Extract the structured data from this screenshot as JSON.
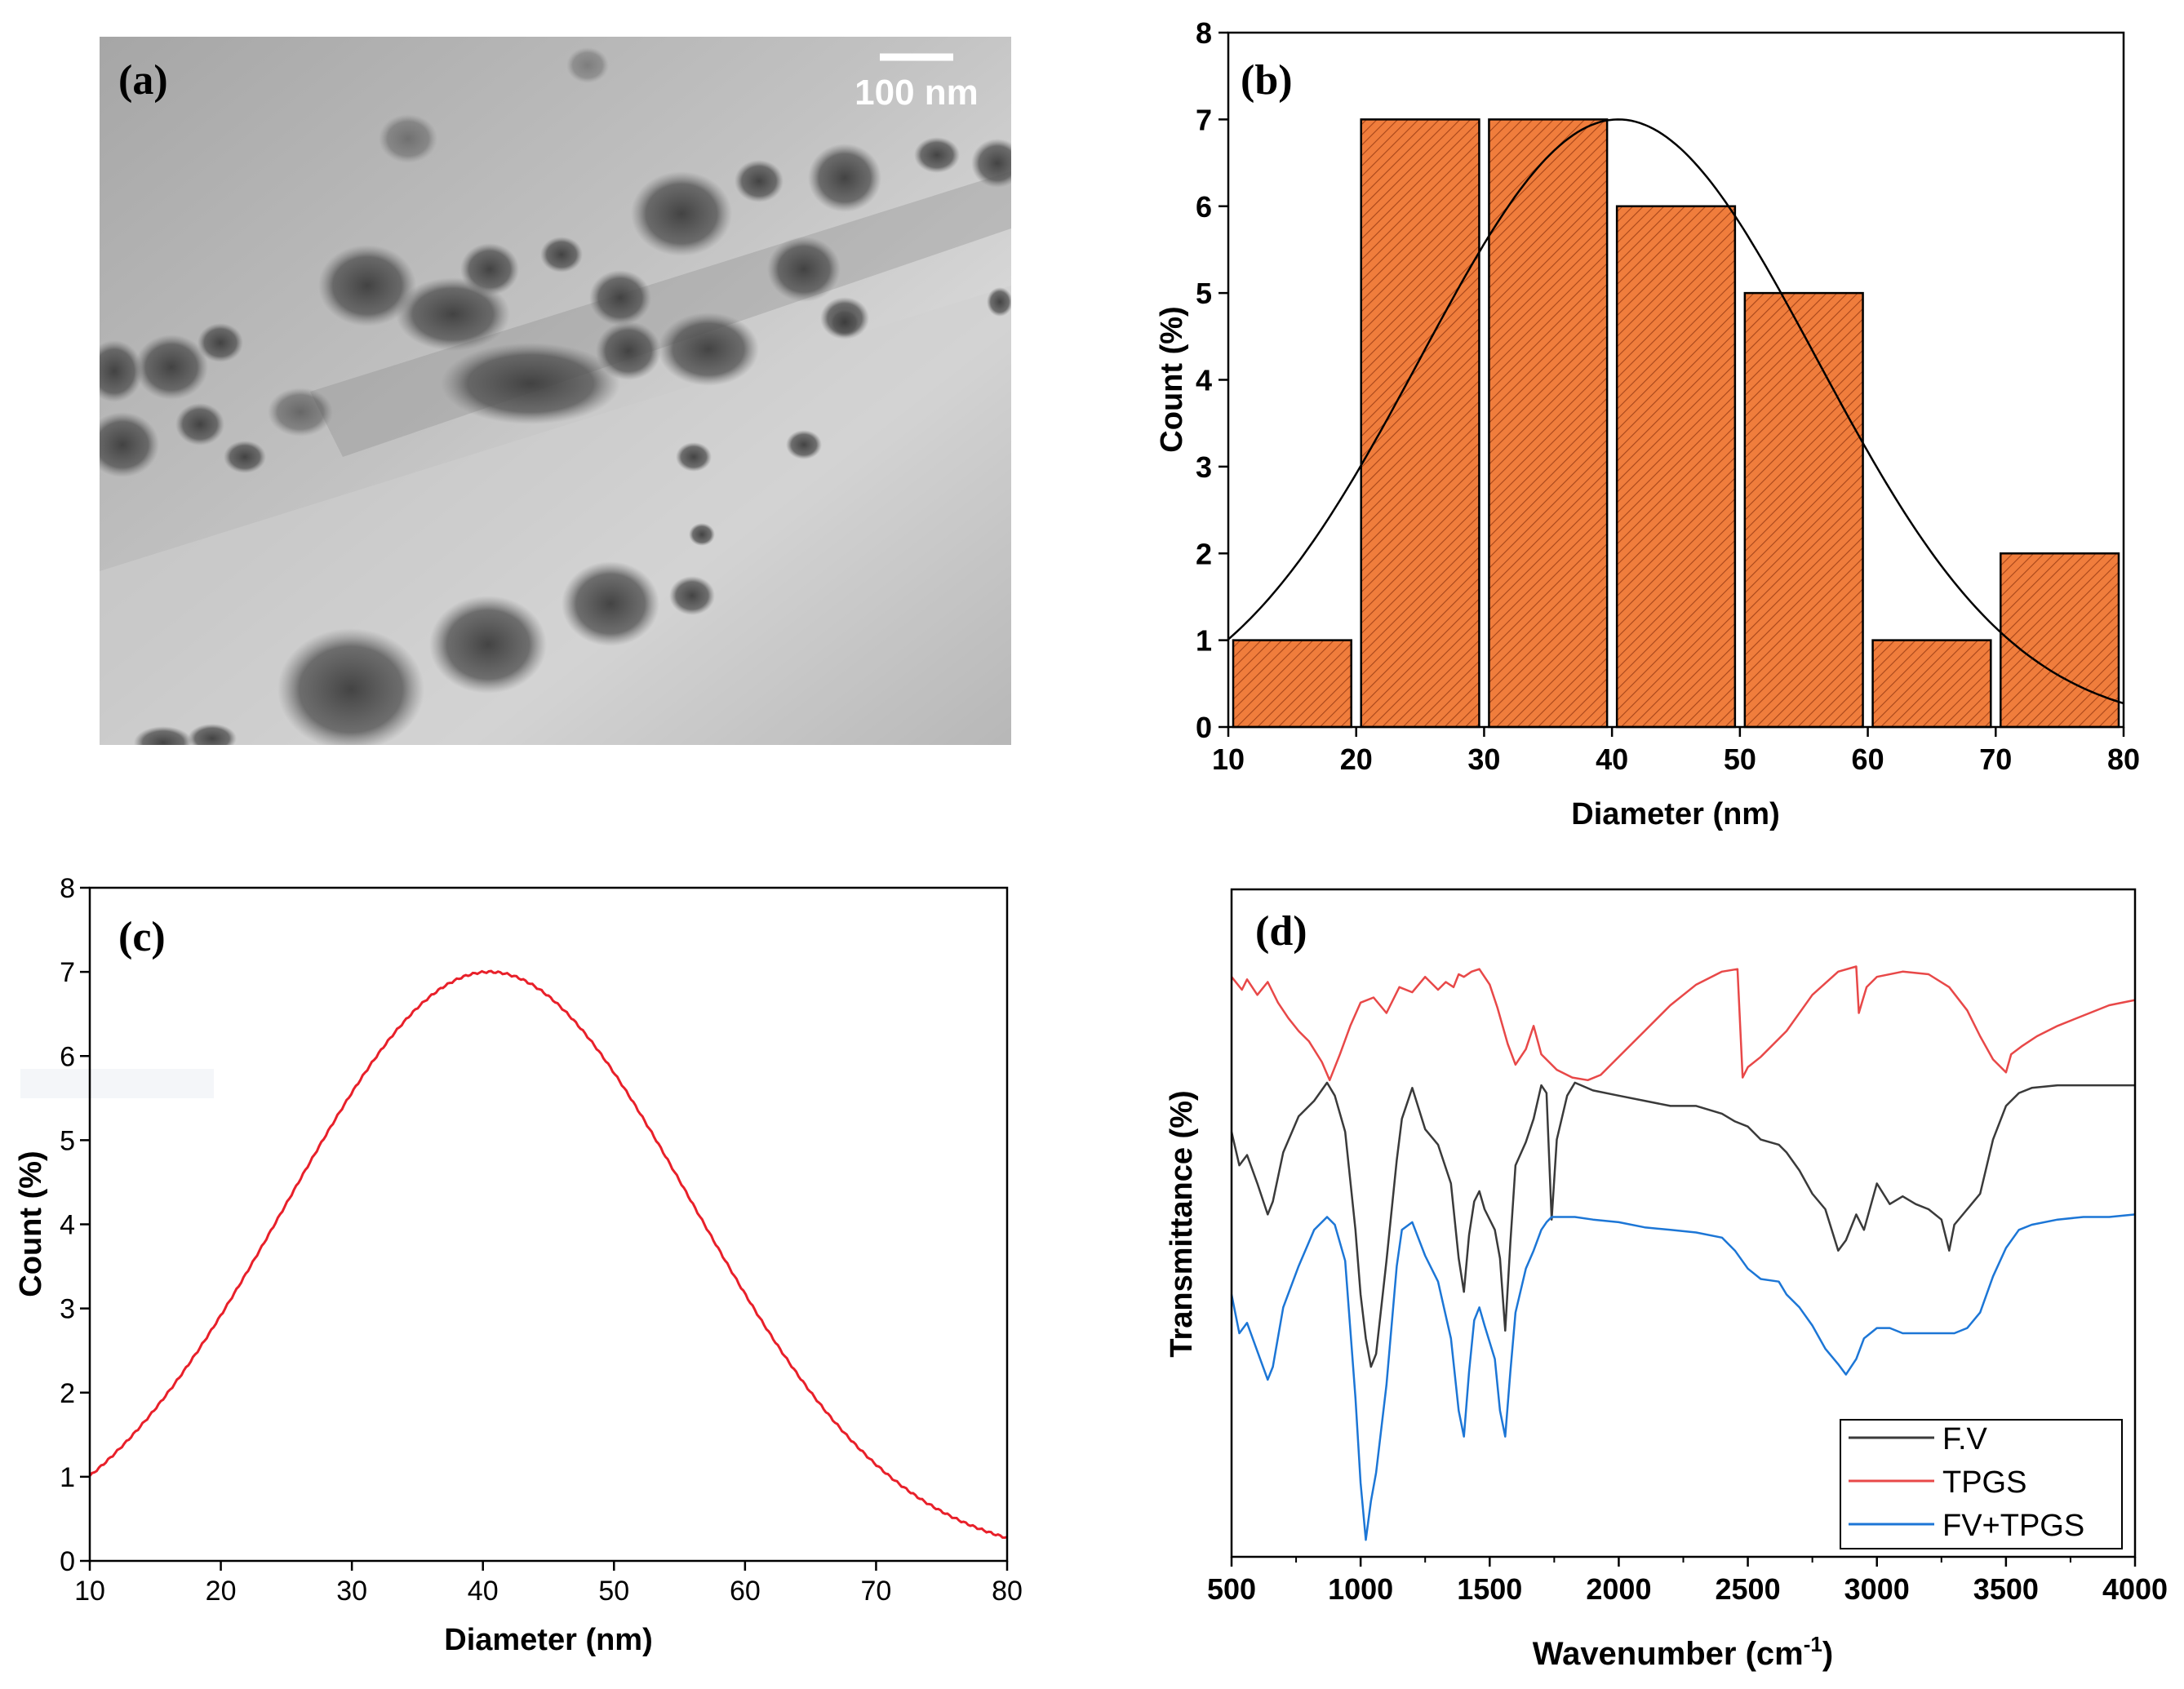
{
  "colors": {
    "bar_fill": "#f07d3c",
    "bar_hatch": "#a8461a",
    "red": "#e8202a",
    "fv": "#3a3a3a",
    "tpgs": "#e84848",
    "fvtpgs": "#1c76d6",
    "axis": "#000000"
  },
  "panel_a": {
    "label": "(a)",
    "scale_bar": "100 nm"
  },
  "chart_data": [
    {
      "id": "b",
      "type": "bar",
      "label": "(b)",
      "xlabel": "Diameter (nm)",
      "ylabel": "Count (%)",
      "xlim": [
        10,
        80
      ],
      "ylim": [
        0,
        8
      ],
      "xticks": [
        "10",
        "20",
        "30",
        "40",
        "50",
        "60",
        "70",
        "80"
      ],
      "yticks": [
        "0",
        "1",
        "2",
        "3",
        "4",
        "5",
        "6",
        "7",
        "8"
      ],
      "bins": [
        {
          "start": 10,
          "end": 20,
          "value": 1
        },
        {
          "start": 20,
          "end": 30,
          "value": 7
        },
        {
          "start": 30,
          "end": 40,
          "value": 7
        },
        {
          "start": 40,
          "end": 50,
          "value": 6
        },
        {
          "start": 50,
          "end": 60,
          "value": 5
        },
        {
          "start": 60,
          "end": 70,
          "value": 1
        },
        {
          "start": 70,
          "end": 80,
          "value": 2
        }
      ],
      "fit": {
        "type": "gaussian",
        "peak": 7,
        "mean": 40.5,
        "sigma": 15.5
      }
    },
    {
      "id": "c",
      "type": "line",
      "label": "(c)",
      "xlabel": "Diameter (nm)",
      "ylabel": "Count (%)",
      "xlim": [
        10,
        80
      ],
      "ylim": [
        0,
        8
      ],
      "xticks": [
        "10",
        "20",
        "30",
        "40",
        "50",
        "60",
        "70",
        "80"
      ],
      "yticks": [
        "0",
        "1",
        "2",
        "3",
        "4",
        "5",
        "6",
        "7",
        "8"
      ],
      "curve": {
        "type": "gaussian",
        "peak": 7,
        "mean": 40.5,
        "sigma": 15.5
      }
    },
    {
      "id": "d",
      "type": "line",
      "label": "(d)",
      "xlabel": "Wavenumber (cm",
      "xlabel_sup": "-1",
      "xlabel_end": ")",
      "ylabel": "Transmittance (%)",
      "xlim": [
        500,
        4000
      ],
      "xticks": [
        "500",
        "1000",
        "1500",
        "2000",
        "2500",
        "3000",
        "3500",
        "4000"
      ],
      "legend": [
        "F.V",
        "TPGS",
        "FV+TPGS"
      ],
      "series": [
        {
          "name": "TPGS",
          "x": [
            500,
            540,
            560,
            600,
            640,
            680,
            720,
            760,
            800,
            850,
            880,
            920,
            960,
            1000,
            1050,
            1100,
            1150,
            1200,
            1250,
            1300,
            1330,
            1360,
            1380,
            1400,
            1430,
            1460,
            1500,
            1530,
            1570,
            1600,
            1640,
            1670,
            1700,
            1760,
            1820,
            1880,
            1930,
            2000,
            2100,
            2200,
            2300,
            2400,
            2460,
            2480,
            2500,
            2550,
            2650,
            2750,
            2850,
            2920,
            2930,
            2945,
            2960,
            3000,
            3100,
            3200,
            3280,
            3350,
            3400,
            3450,
            3500,
            3520,
            3560,
            3620,
            3700,
            3800,
            3900,
            4000
          ],
          "y": [
            1.18,
            1.13,
            1.17,
            1.11,
            1.16,
            1.08,
            1.02,
            0.97,
            0.93,
            0.85,
            0.78,
            0.88,
            0.99,
            1.08,
            1.1,
            1.04,
            1.14,
            1.12,
            1.18,
            1.13,
            1.16,
            1.14,
            1.19,
            1.18,
            1.2,
            1.21,
            1.15,
            1.06,
            0.92,
            0.84,
            0.9,
            0.99,
            0.88,
            0.82,
            0.79,
            0.78,
            0.8,
            0.87,
            0.97,
            1.07,
            1.15,
            1.2,
            1.21,
            0.79,
            0.83,
            0.87,
            0.97,
            1.11,
            1.2,
            1.22,
            1.04,
            1.09,
            1.14,
            1.18,
            1.2,
            1.19,
            1.14,
            1.05,
            0.95,
            0.86,
            0.81,
            0.88,
            0.91,
            0.95,
            0.99,
            1.03,
            1.07,
            1.09
          ]
        },
        {
          "name": "F.V",
          "x": [
            500,
            530,
            560,
            600,
            640,
            660,
            700,
            760,
            820,
            870,
            900,
            940,
            980,
            1000,
            1020,
            1040,
            1060,
            1100,
            1140,
            1160,
            1200,
            1250,
            1300,
            1350,
            1380,
            1400,
            1420,
            1440,
            1460,
            1480,
            1520,
            1540,
            1560,
            1580,
            1600,
            1640,
            1670,
            1700,
            1720,
            1740,
            1760,
            1800,
            1830,
            1900,
            2000,
            2100,
            2200,
            2300,
            2400,
            2450,
            2500,
            2550,
            2620,
            2650,
            2700,
            2750,
            2800,
            2850,
            2880,
            2920,
            2950,
            3000,
            3050,
            3100,
            3150,
            3200,
            3250,
            3280,
            3300,
            3350,
            3400,
            3450,
            3500,
            3550,
            3600,
            3700,
            3800,
            3900,
            4000
          ],
          "y": [
            0.58,
            0.45,
            0.49,
            0.38,
            0.26,
            0.31,
            0.5,
            0.64,
            0.7,
            0.77,
            0.72,
            0.58,
            0.2,
            -0.05,
            -0.22,
            -0.33,
            -0.28,
            0.08,
            0.47,
            0.63,
            0.75,
            0.59,
            0.53,
            0.38,
            0.09,
            -0.04,
            0.18,
            0.31,
            0.35,
            0.28,
            0.2,
            0.09,
            -0.19,
            0.15,
            0.45,
            0.54,
            0.63,
            0.76,
            0.73,
            0.24,
            0.55,
            0.72,
            0.77,
            0.74,
            0.72,
            0.7,
            0.68,
            0.68,
            0.65,
            0.62,
            0.6,
            0.55,
            0.53,
            0.5,
            0.43,
            0.34,
            0.28,
            0.12,
            0.16,
            0.26,
            0.2,
            0.38,
            0.3,
            0.33,
            0.3,
            0.28,
            0.24,
            0.12,
            0.22,
            0.28,
            0.34,
            0.55,
            0.68,
            0.73,
            0.75,
            0.76,
            0.76,
            0.76,
            0.76
          ]
        },
        {
          "name": "FV+TPGS",
          "x": [
            500,
            530,
            560,
            600,
            640,
            660,
            700,
            760,
            820,
            870,
            900,
            940,
            980,
            1000,
            1020,
            1040,
            1060,
            1100,
            1140,
            1160,
            1200,
            1250,
            1300,
            1350,
            1380,
            1400,
            1420,
            1440,
            1460,
            1480,
            1520,
            1540,
            1560,
            1580,
            1600,
            1640,
            1670,
            1700,
            1720,
            1740,
            1760,
            1800,
            1830,
            1900,
            2000,
            2100,
            2200,
            2300,
            2400,
            2450,
            2500,
            2550,
            2620,
            2650,
            2700,
            2750,
            2800,
            2850,
            2880,
            2920,
            2950,
            3000,
            3050,
            3100,
            3150,
            3200,
            3250,
            3280,
            3300,
            3350,
            3400,
            3450,
            3500,
            3550,
            3600,
            3700,
            3800,
            3900,
            4000
          ],
          "y": [
            -0.05,
            -0.2,
            -0.16,
            -0.27,
            -0.38,
            -0.33,
            -0.1,
            0.06,
            0.2,
            0.25,
            0.22,
            0.08,
            -0.45,
            -0.78,
            -1.0,
            -0.85,
            -0.74,
            -0.4,
            0.06,
            0.2,
            0.23,
            0.1,
            0.0,
            -0.22,
            -0.5,
            -0.6,
            -0.35,
            -0.15,
            -0.1,
            -0.17,
            -0.3,
            -0.5,
            -0.6,
            -0.35,
            -0.12,
            0.05,
            0.12,
            0.2,
            0.23,
            0.25,
            0.25,
            0.25,
            0.25,
            0.24,
            0.23,
            0.21,
            0.2,
            0.19,
            0.17,
            0.12,
            0.05,
            0.01,
            0.0,
            -0.05,
            -0.1,
            -0.17,
            -0.26,
            -0.32,
            -0.36,
            -0.3,
            -0.22,
            -0.18,
            -0.18,
            -0.2,
            -0.2,
            -0.2,
            -0.2,
            -0.2,
            -0.2,
            -0.18,
            -0.12,
            0.02,
            0.13,
            0.2,
            0.22,
            0.24,
            0.25,
            0.25,
            0.26
          ]
        }
      ]
    }
  ]
}
